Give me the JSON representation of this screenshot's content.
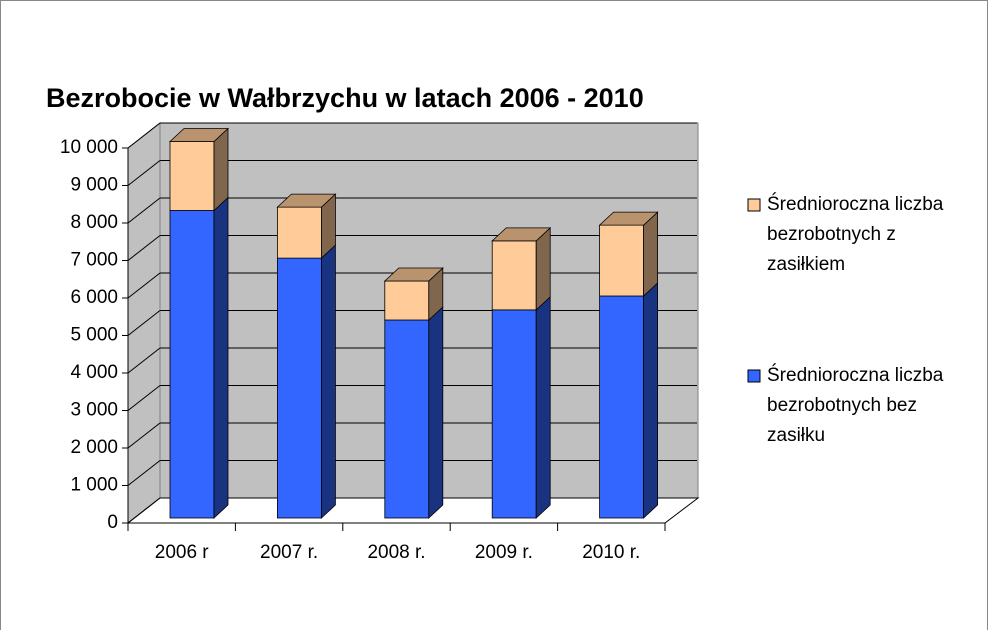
{
  "chart_data": {
    "type": "bar3d_stacked",
    "title": "Bezrobocie w Wałbrzychu w latach 2006 - 2010",
    "categories": [
      "2006 r",
      "2007 r.",
      "2008 r.",
      "2009 r.",
      "2010 r."
    ],
    "series": [
      {
        "name": "Średnioroczna liczba bezrobotnych bez zasiłku",
        "color": "#3366ff",
        "values": [
          8200,
          6930,
          5280,
          5550,
          5920
        ]
      },
      {
        "name": "Średnioroczna liczba bezrobotnych z zasiłkiem",
        "color": "#ffcc99",
        "values": [
          1840,
          1360,
          1040,
          1840,
          1890
        ]
      }
    ],
    "ylim": [
      0,
      10000
    ],
    "yticks": [
      0,
      {
        "value": 1000,
        "label": "1 000"
      },
      {
        "value": 2000,
        "label": "2 000"
      },
      {
        "value": 3000,
        "label": "3 000"
      },
      {
        "value": 4000,
        "label": "4 000"
      },
      {
        "value": 5000,
        "label": "5 000"
      },
      {
        "value": 6000,
        "label": "6 000"
      },
      {
        "value": 7000,
        "label": "7 000"
      },
      {
        "value": 8000,
        "label": "8 000"
      },
      {
        "value": 9000,
        "label": "9 000"
      },
      {
        "value": 10000,
        "label": "10 000"
      }
    ],
    "grid": true,
    "legend": "right"
  }
}
